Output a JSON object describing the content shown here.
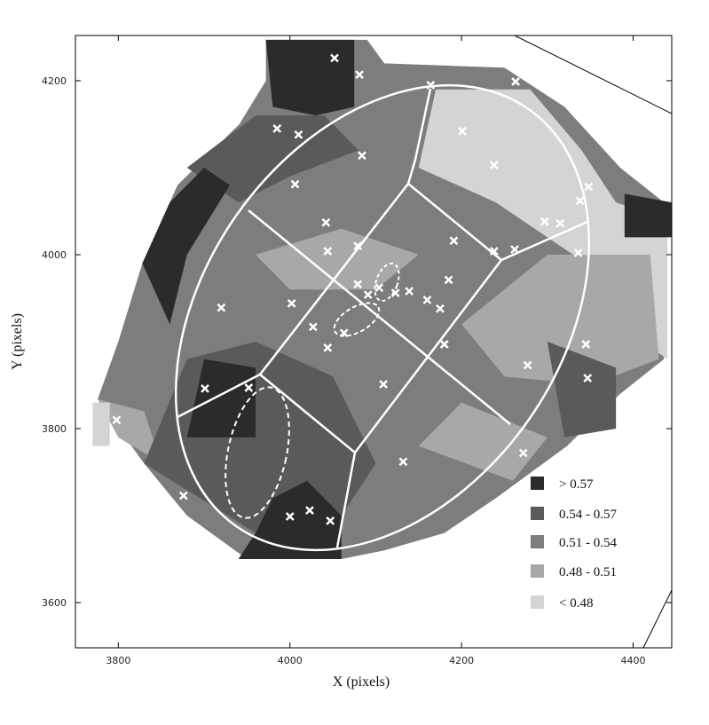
{
  "chart_data": {
    "type": "map",
    "xlabel": "X (pixels)",
    "ylabel": "Y (pixels)",
    "xlim": [
      3750,
      4445
    ],
    "ylim": [
      3548,
      4252
    ],
    "xticks": [
      3800,
      4000,
      4200,
      4400
    ],
    "yticks": [
      3600,
      3800,
      4000,
      4200
    ],
    "legend": [
      {
        "label": "> 0.57",
        "color": "#2b2b2b"
      },
      {
        "label": "0.54 - 0.57",
        "color": "#5a5a5a"
      },
      {
        "label": "0.51 - 0.54",
        "color": "#7d7d7d"
      },
      {
        "label": "0.48 - 0.51",
        "color": "#a8a8a8"
      },
      {
        "label": "< 0.48",
        "color": "#d4d4d4"
      }
    ],
    "regions": [
      {
        "level": 2,
        "x": [
          3776,
          3800,
          3828,
          3869,
          3941,
          3972,
          3972,
          4090,
          4110,
          4250,
          4320,
          4385,
          4436,
          4436,
          4385,
          4323,
          4240,
          4180,
          4110,
          4060,
          3950,
          3880,
          3830
        ],
        "y": [
          3834,
          3900,
          3990,
          4080,
          4150,
          4200,
          4247,
          4247,
          4220,
          4215,
          4170,
          4100,
          4060,
          3880,
          3840,
          3780,
          3720,
          3680,
          3660,
          3650,
          3650,
          3700,
          3760
        ]
      },
      {
        "level": 4,
        "x": [
          4170,
          4280,
          4340,
          4380,
          4440,
          4440,
          4380,
          4330,
          4240,
          4150
        ],
        "y": [
          4190,
          4190,
          4120,
          4060,
          4040,
          3880,
          3920,
          4000,
          4060,
          4100
        ]
      },
      {
        "level": 3,
        "x": [
          4200,
          4300,
          4420,
          4430,
          4350,
          4250
        ],
        "y": [
          3920,
          4000,
          4000,
          3880,
          3850,
          3860
        ]
      },
      {
        "level": 3,
        "x": [
          3960,
          4060,
          4150,
          4100,
          4000
        ],
        "y": [
          4000,
          4030,
          4000,
          3960,
          3960
        ]
      },
      {
        "level": 3,
        "x": [
          3776,
          3800,
          3850,
          3830
        ],
        "y": [
          3834,
          3790,
          3760,
          3820
        ]
      },
      {
        "level": 3,
        "x": [
          4150,
          4260,
          4300,
          4200
        ],
        "y": [
          3780,
          3740,
          3790,
          3830
        ]
      },
      {
        "level": 1,
        "x": [
          3830,
          3880,
          3960,
          4050,
          4100,
          4060,
          3960
        ],
        "y": [
          3760,
          3880,
          3900,
          3860,
          3760,
          3700,
          3680
        ]
      },
      {
        "level": 1,
        "x": [
          3880,
          3960,
          4040,
          4080,
          4000,
          3940
        ],
        "y": [
          4100,
          4160,
          4160,
          4120,
          4090,
          4060
        ]
      },
      {
        "level": 1,
        "x": [
          4300,
          4380,
          4380,
          4320
        ],
        "y": [
          3900,
          3870,
          3800,
          3790
        ]
      },
      {
        "level": 0,
        "x": [
          3972,
          4075,
          4075,
          4030,
          3980
        ],
        "y": [
          4247,
          4247,
          4170,
          4160,
          4170
        ]
      },
      {
        "level": 0,
        "x": [
          3828,
          3860,
          3900,
          3930,
          3880,
          3860
        ],
        "y": [
          3990,
          4060,
          4100,
          4080,
          4000,
          3920
        ]
      },
      {
        "level": 0,
        "x": [
          3940,
          4060,
          4060,
          4020,
          3980,
          3960
        ],
        "y": [
          3650,
          3650,
          3700,
          3740,
          3720,
          3680
        ]
      },
      {
        "level": 0,
        "x": [
          3880,
          3960,
          3960,
          3900
        ],
        "y": [
          3790,
          3790,
          3870,
          3880
        ]
      },
      {
        "level": 0,
        "x": [
          4390,
          4445,
          4445,
          4390
        ],
        "y": [
          4020,
          4020,
          4060,
          4070
        ]
      },
      {
        "level": 4,
        "x": [
          3770,
          3790,
          3790,
          3770
        ],
        "y": [
          3780,
          3780,
          3830,
          3830
        ]
      }
    ],
    "markers": {
      "color": "#ffffff",
      "x": [
        4052,
        4081,
        4248,
        4263,
        4164,
        3985,
        4010,
        4084,
        4201,
        4238,
        4006,
        4348,
        4338,
        4042,
        4044,
        4079,
        4297,
        4315,
        4191,
        4238,
        4262,
        4336,
        4079,
        4091,
        4104,
        4123,
        4139,
        4160,
        4185,
        4002,
        3920,
        4027,
        4175,
        4063,
        4044,
        4180,
        4345,
        4277,
        4109,
        4347,
        3901,
        3952,
        4132,
        4272,
        3798,
        3876,
        4000,
        4023,
        4047
      ],
      "y": [
        4226,
        4207,
        4220,
        4199,
        4195,
        4145,
        4138,
        4114,
        4142,
        4103,
        4081,
        4078,
        4062,
        4037,
        4004,
        4010,
        4038,
        4036,
        4016,
        4004,
        4006,
        4002,
        3966,
        3954,
        3962,
        3956,
        3958,
        3948,
        3971,
        3944,
        3939,
        3917,
        3938,
        3910,
        3893,
        3897,
        3897,
        3873,
        3851,
        3858,
        3846,
        3847,
        3762,
        3772,
        3810,
        3723,
        3699,
        3706,
        3694
      ]
    }
  }
}
